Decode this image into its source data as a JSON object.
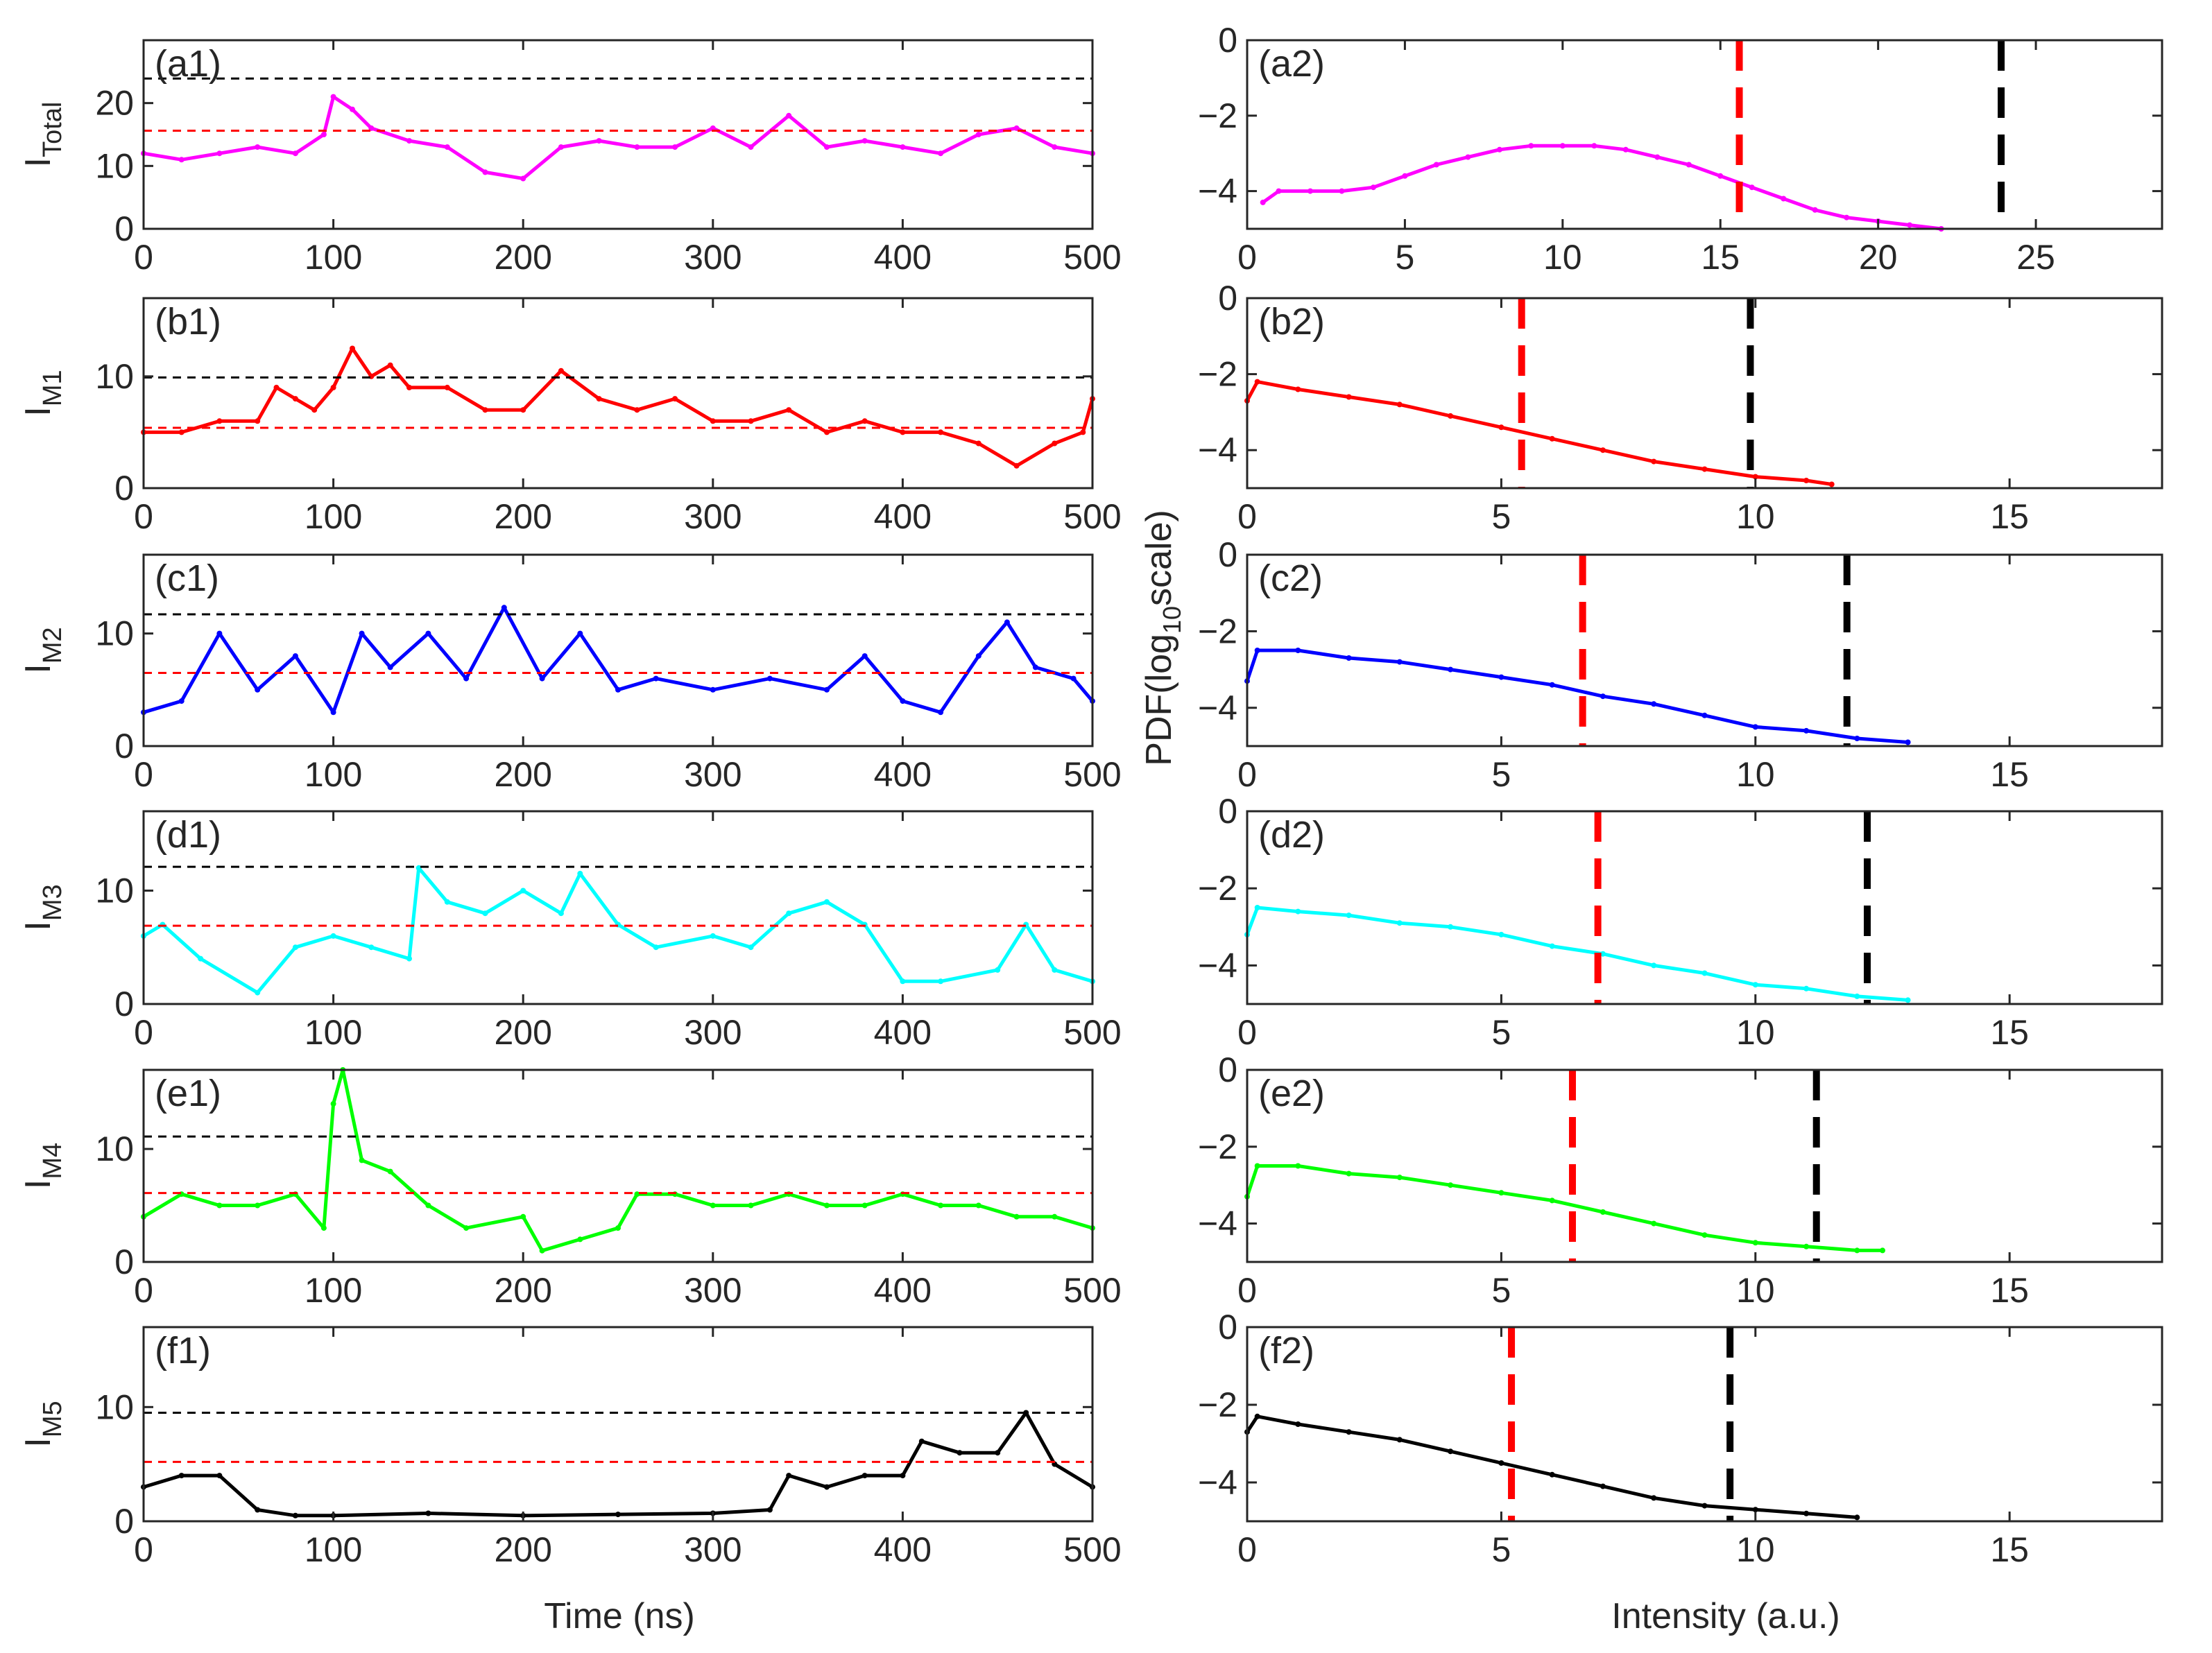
{
  "figure": {
    "left_xlabel": "Time (ns)",
    "right_xlabel": "Intensity (a.u.)",
    "right_ylabel": "PDF(log",
    "right_ylabel_sub": "10",
    "right_ylabel_tail": "scale)"
  },
  "chart_data": [
    {
      "id": "a1",
      "type": "line",
      "label": "(a1)",
      "ylabel_main": "I",
      "ylabel_sub": "Total",
      "color": "#ff00ff",
      "xlim": [
        0,
        500
      ],
      "ylim": [
        0,
        30
      ],
      "xticks": [
        0,
        100,
        200,
        300,
        400,
        500
      ],
      "yticks": [
        0,
        10,
        20
      ],
      "threshold_red": 15.6,
      "threshold_black": 23.9,
      "series": {
        "name": "I_Total",
        "x": [
          0,
          20,
          40,
          60,
          80,
          95,
          100,
          110,
          120,
          140,
          160,
          180,
          200,
          220,
          240,
          260,
          280,
          300,
          320,
          340,
          360,
          380,
          400,
          420,
          440,
          460,
          480,
          500
        ],
        "y": [
          12,
          11,
          12,
          13,
          12,
          15,
          21,
          19,
          16,
          14,
          13,
          9,
          8,
          13,
          14,
          13,
          13,
          16,
          13,
          18,
          13,
          14,
          13,
          12,
          15,
          16,
          13,
          12
        ]
      }
    },
    {
      "id": "a2",
      "type": "line",
      "label": "(a2)",
      "color": "#ff00ff",
      "xlim": [
        0,
        29
      ],
      "ylim": [
        -5,
        0
      ],
      "xticks": [
        0,
        5,
        10,
        15,
        20,
        25
      ],
      "yticks": [
        0,
        -2,
        -4
      ],
      "threshold_red": 15.6,
      "threshold_black": 23.9,
      "series": {
        "name": "PDF I_Total",
        "x": [
          0.5,
          1,
          2,
          3,
          4,
          5,
          6,
          7,
          8,
          9,
          10,
          11,
          12,
          13,
          14,
          15,
          16,
          17,
          18,
          19,
          20,
          21,
          22
        ],
        "y": [
          -4.3,
          -4.0,
          -4.0,
          -4.0,
          -3.9,
          -3.6,
          -3.3,
          -3.1,
          -2.9,
          -2.8,
          -2.8,
          -2.8,
          -2.9,
          -3.1,
          -3.3,
          -3.6,
          -3.9,
          -4.2,
          -4.5,
          -4.7,
          -4.8,
          -4.9,
          -5.0
        ]
      }
    },
    {
      "id": "b1",
      "type": "line",
      "label": "(b1)",
      "ylabel_main": "I",
      "ylabel_sub": "M1",
      "color": "#ff0000",
      "xlim": [
        0,
        500
      ],
      "ylim": [
        0,
        17
      ],
      "xticks": [
        0,
        100,
        200,
        300,
        400,
        500
      ],
      "yticks": [
        0,
        10
      ],
      "threshold_red": 5.4,
      "threshold_black": 9.9,
      "series": {
        "name": "I_M1",
        "x": [
          0,
          20,
          40,
          60,
          70,
          80,
          90,
          100,
          110,
          120,
          130,
          140,
          160,
          180,
          200,
          220,
          240,
          260,
          280,
          300,
          320,
          340,
          360,
          380,
          400,
          420,
          440,
          460,
          480,
          495,
          500
        ],
        "y": [
          5,
          5,
          6,
          6,
          9,
          8,
          7,
          9,
          12.5,
          10,
          11,
          9,
          9,
          7,
          7,
          10.5,
          8,
          7,
          8,
          6,
          6,
          7,
          5,
          6,
          5,
          5,
          4,
          2,
          4,
          5,
          8
        ]
      }
    },
    {
      "id": "b2",
      "type": "line",
      "label": "(b2)",
      "color": "#ff0000",
      "xlim": [
        0,
        18
      ],
      "ylim": [
        -5,
        0
      ],
      "xticks": [
        0,
        5,
        10,
        15
      ],
      "yticks": [
        0,
        -2,
        -4
      ],
      "threshold_red": 5.4,
      "threshold_black": 9.9,
      "series": {
        "name": "PDF I_M1",
        "x": [
          0,
          0.2,
          1,
          2,
          3,
          4,
          5,
          6,
          7,
          8,
          9,
          10,
          11,
          11.5
        ],
        "y": [
          -2.7,
          -2.2,
          -2.4,
          -2.6,
          -2.8,
          -3.1,
          -3.4,
          -3.7,
          -4.0,
          -4.3,
          -4.5,
          -4.7,
          -4.8,
          -4.9
        ]
      }
    },
    {
      "id": "c1",
      "type": "line",
      "label": "(c1)",
      "ylabel_main": "I",
      "ylabel_sub": "M2",
      "color": "#0000ff",
      "xlim": [
        0,
        500
      ],
      "ylim": [
        0,
        17
      ],
      "xticks": [
        0,
        100,
        200,
        300,
        400,
        500
      ],
      "yticks": [
        0,
        10
      ],
      "threshold_red": 6.5,
      "threshold_black": 11.7,
      "series": {
        "name": "I_M2",
        "x": [
          0,
          20,
          40,
          60,
          80,
          100,
          115,
          130,
          150,
          170,
          190,
          210,
          230,
          250,
          270,
          300,
          330,
          360,
          380,
          400,
          420,
          440,
          455,
          470,
          490,
          500
        ],
        "y": [
          3,
          4,
          10,
          5,
          8,
          3,
          10,
          7,
          10,
          6,
          12.3,
          6,
          10,
          5,
          6,
          5,
          6,
          5,
          8,
          4,
          3,
          8,
          11,
          7,
          6,
          4
        ]
      }
    },
    {
      "id": "c2",
      "type": "line",
      "label": "(c2)",
      "color": "#0000ff",
      "xlim": [
        0,
        18
      ],
      "ylim": [
        -5,
        0
      ],
      "xticks": [
        0,
        5,
        10,
        15
      ],
      "yticks": [
        0,
        -2,
        -4
      ],
      "threshold_red": 6.6,
      "threshold_black": 11.8,
      "series": {
        "name": "PDF I_M2",
        "x": [
          0,
          0.2,
          1,
          2,
          3,
          4,
          5,
          6,
          7,
          8,
          9,
          10,
          11,
          12,
          13
        ],
        "y": [
          -3.3,
          -2.5,
          -2.5,
          -2.7,
          -2.8,
          -3.0,
          -3.2,
          -3.4,
          -3.7,
          -3.9,
          -4.2,
          -4.5,
          -4.6,
          -4.8,
          -4.9
        ]
      }
    },
    {
      "id": "d1",
      "type": "line",
      "label": "(d1)",
      "ylabel_main": "I",
      "ylabel_sub": "M3",
      "color": "#00ffff",
      "xlim": [
        0,
        500
      ],
      "ylim": [
        0,
        17
      ],
      "xticks": [
        0,
        100,
        200,
        300,
        400,
        500
      ],
      "yticks": [
        0,
        10
      ],
      "threshold_red": 6.9,
      "threshold_black": 12.1,
      "series": {
        "name": "I_M3",
        "x": [
          0,
          10,
          30,
          60,
          80,
          100,
          120,
          140,
          145,
          160,
          180,
          200,
          220,
          230,
          250,
          270,
          300,
          320,
          340,
          360,
          380,
          400,
          420,
          450,
          465,
          480,
          500
        ],
        "y": [
          6,
          7,
          4,
          1,
          5,
          6,
          5,
          4,
          12,
          9,
          8,
          10,
          8,
          11.5,
          7,
          5,
          6,
          5,
          8,
          9,
          7,
          2,
          2,
          3,
          7,
          3,
          2
        ]
      }
    },
    {
      "id": "d2",
      "type": "line",
      "label": "(d2)",
      "color": "#00ffff",
      "xlim": [
        0,
        18
      ],
      "ylim": [
        -5,
        0
      ],
      "xticks": [
        0,
        5,
        10,
        15
      ],
      "yticks": [
        0,
        -2,
        -4
      ],
      "threshold_red": 6.9,
      "threshold_black": 12.2,
      "series": {
        "name": "PDF I_M3",
        "x": [
          0,
          0.2,
          1,
          2,
          3,
          4,
          5,
          6,
          7,
          8,
          9,
          10,
          11,
          12,
          13
        ],
        "y": [
          -3.2,
          -2.5,
          -2.6,
          -2.7,
          -2.9,
          -3.0,
          -3.2,
          -3.5,
          -3.7,
          -4.0,
          -4.2,
          -4.5,
          -4.6,
          -4.8,
          -4.9
        ]
      }
    },
    {
      "id": "e1",
      "type": "line",
      "label": "(e1)",
      "ylabel_main": "I",
      "ylabel_sub": "M4",
      "color": "#00ff00",
      "xlim": [
        0,
        500
      ],
      "ylim": [
        0,
        17
      ],
      "xticks": [
        0,
        100,
        200,
        300,
        400,
        500
      ],
      "yticks": [
        0,
        10
      ],
      "threshold_red": 6.1,
      "threshold_black": 11.1,
      "series": {
        "name": "I_M4",
        "x": [
          0,
          20,
          40,
          60,
          80,
          95,
          100,
          105,
          115,
          130,
          150,
          170,
          200,
          210,
          230,
          250,
          260,
          280,
          300,
          320,
          340,
          360,
          380,
          400,
          420,
          440,
          460,
          480,
          500
        ],
        "y": [
          4,
          6,
          5,
          5,
          6,
          3,
          14,
          17,
          9,
          8,
          5,
          3,
          4,
          1,
          2,
          3,
          6,
          6,
          5,
          5,
          6,
          5,
          5,
          6,
          5,
          5,
          4,
          4,
          3
        ]
      }
    },
    {
      "id": "e2",
      "type": "line",
      "label": "(e2)",
      "color": "#00ff00",
      "xlim": [
        0,
        18
      ],
      "ylim": [
        -5,
        0
      ],
      "xticks": [
        0,
        5,
        10,
        15
      ],
      "yticks": [
        0,
        -2,
        -4
      ],
      "threshold_red": 6.4,
      "threshold_black": 11.2,
      "series": {
        "name": "PDF I_M4",
        "x": [
          0,
          0.2,
          1,
          2,
          3,
          4,
          5,
          6,
          7,
          8,
          9,
          10,
          11,
          12,
          12.5
        ],
        "y": [
          -3.3,
          -2.5,
          -2.5,
          -2.7,
          -2.8,
          -3.0,
          -3.2,
          -3.4,
          -3.7,
          -4.0,
          -4.3,
          -4.5,
          -4.6,
          -4.7,
          -4.7
        ]
      }
    },
    {
      "id": "f1",
      "type": "line",
      "label": "(f1)",
      "ylabel_main": "I",
      "ylabel_sub": "M5",
      "color": "#000000",
      "xlim": [
        0,
        500
      ],
      "ylim": [
        0,
        17
      ],
      "xticks": [
        0,
        100,
        200,
        300,
        400,
        500
      ],
      "yticks": [
        0,
        10
      ],
      "threshold_red": 5.2,
      "threshold_black": 9.5,
      "series": {
        "name": "I_M5",
        "x": [
          0,
          20,
          40,
          60,
          80,
          100,
          150,
          200,
          250,
          300,
          330,
          340,
          360,
          380,
          400,
          410,
          430,
          450,
          465,
          480,
          500
        ],
        "y": [
          3,
          4,
          4,
          1,
          0.5,
          0.5,
          0.7,
          0.5,
          0.6,
          0.7,
          1,
          4,
          3,
          4,
          4,
          7,
          6,
          6,
          9.5,
          5,
          3
        ]
      }
    },
    {
      "id": "f2",
      "type": "line",
      "label": "(f2)",
      "color": "#000000",
      "xlim": [
        0,
        18
      ],
      "ylim": [
        -5,
        0
      ],
      "xticks": [
        0,
        5,
        10,
        15
      ],
      "yticks": [
        0,
        -2,
        -4
      ],
      "threshold_red": 5.2,
      "threshold_black": 9.5,
      "series": {
        "name": "PDF I_M5",
        "x": [
          0,
          0.2,
          1,
          2,
          3,
          4,
          5,
          6,
          7,
          8,
          9,
          10,
          11,
          12
        ],
        "y": [
          -2.7,
          -2.3,
          -2.5,
          -2.7,
          -2.9,
          -3.2,
          -3.5,
          -3.8,
          -4.1,
          -4.4,
          -4.6,
          -4.7,
          -4.8,
          -4.9
        ]
      }
    }
  ]
}
